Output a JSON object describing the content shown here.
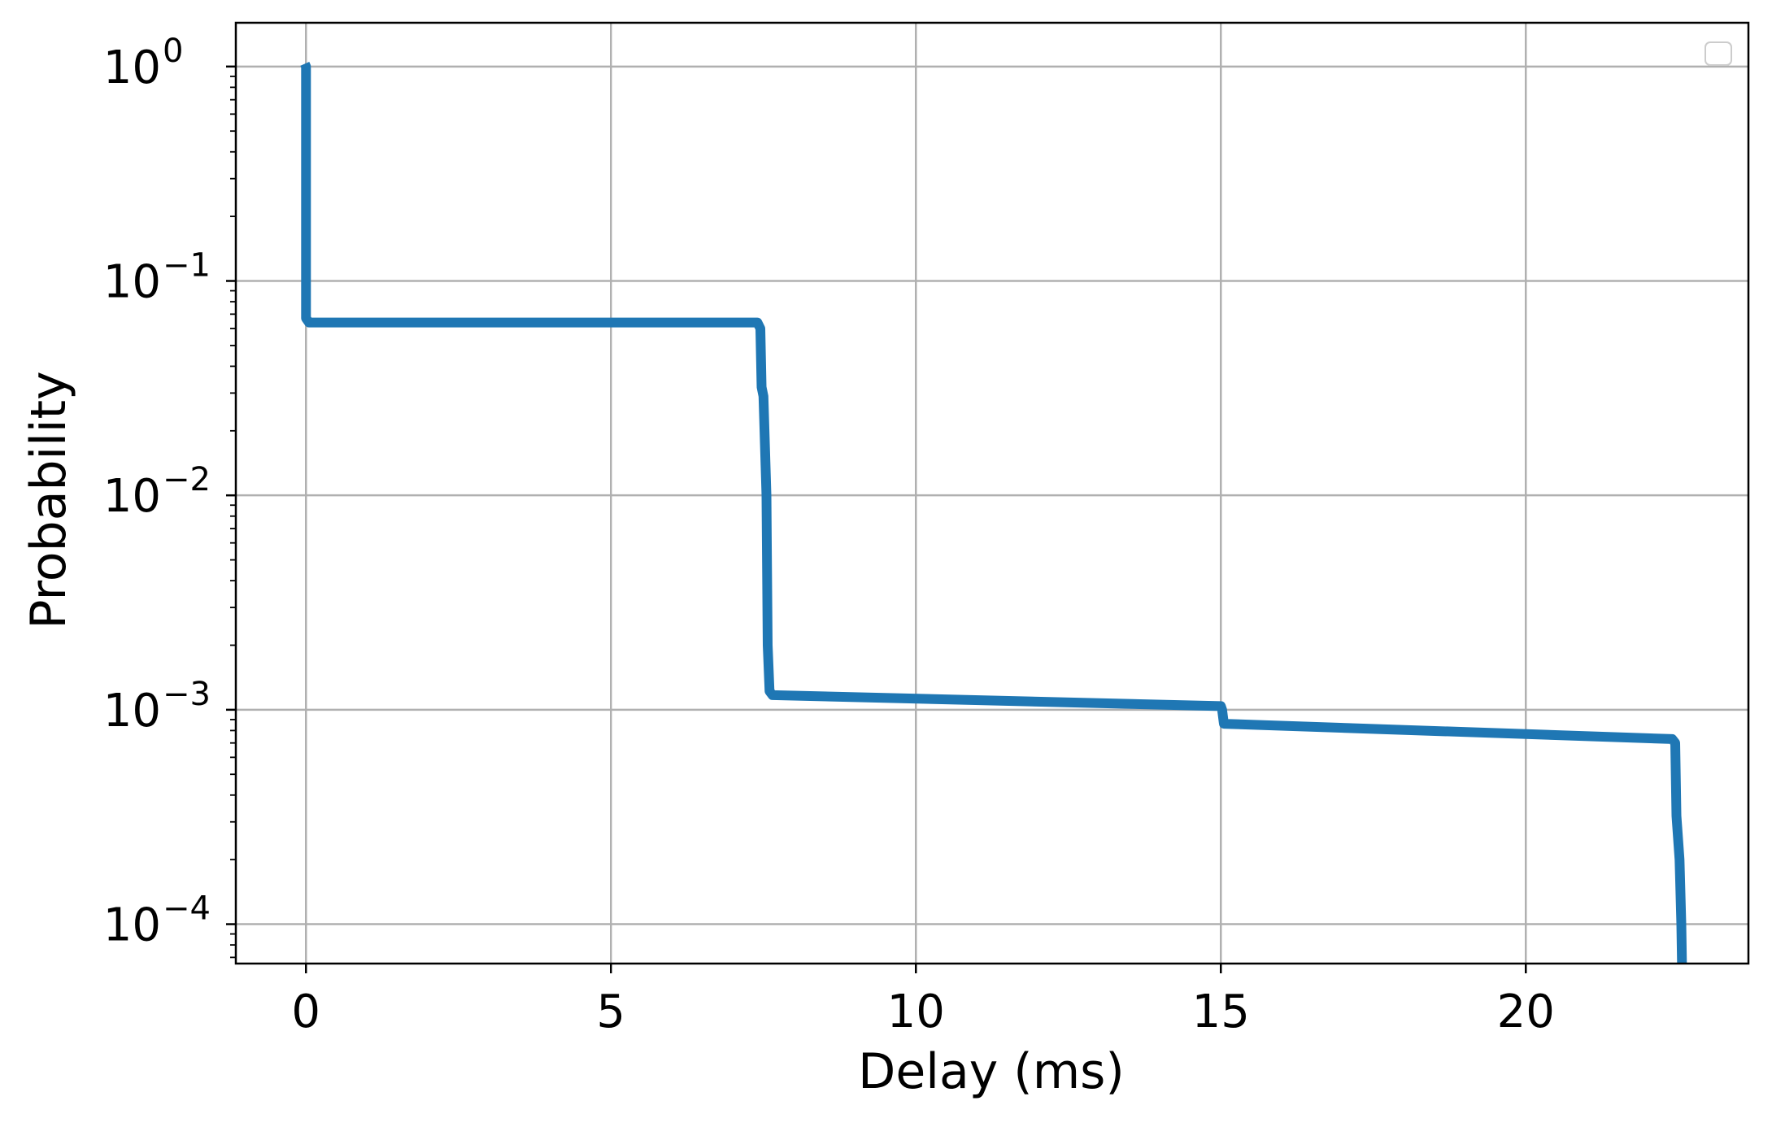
{
  "chart_data": {
    "type": "line",
    "title": "",
    "xlabel": "Delay (ms)",
    "ylabel": "Probability",
    "xlim": [
      -1.15,
      23.65
    ],
    "ylim": [
      6.55e-05,
      1.6
    ],
    "yscale": "log",
    "grid": true,
    "legend": "top-right (empty)",
    "x_ticks": [
      {
        "value": 0,
        "label": "0"
      },
      {
        "value": 5,
        "label": "5"
      },
      {
        "value": 10,
        "label": "10"
      },
      {
        "value": 15,
        "label": "15"
      },
      {
        "value": 20,
        "label": "20"
      }
    ],
    "y_ticks": [
      {
        "value": 1,
        "base": "10",
        "exp": "0"
      },
      {
        "value": 0.1,
        "base": "10",
        "exp": "−1"
      },
      {
        "value": 0.01,
        "base": "10",
        "exp": "−2"
      },
      {
        "value": 0.001,
        "base": "10",
        "exp": "−3"
      },
      {
        "value": 0.0001,
        "base": "10",
        "exp": "−4"
      }
    ],
    "series": [
      {
        "color": "#1f77b4",
        "x": [
          -0.02,
          0.0,
          0.0,
          0.05,
          7.4,
          7.45,
          7.47,
          7.5,
          7.55,
          7.57,
          7.6,
          7.65,
          15.0,
          15.02,
          15.05,
          22.4,
          22.45,
          22.47,
          22.52,
          22.55,
          22.56
        ],
        "y": [
          1.03,
          1.0,
          0.067,
          0.064,
          0.064,
          0.06,
          0.032,
          0.029,
          0.01,
          0.002,
          0.00122,
          0.00117,
          0.00104,
          0.001,
          0.00086,
          0.00073,
          0.0007,
          0.00032,
          0.0002,
          0.0001,
          6.55e-05
        ]
      }
    ]
  }
}
